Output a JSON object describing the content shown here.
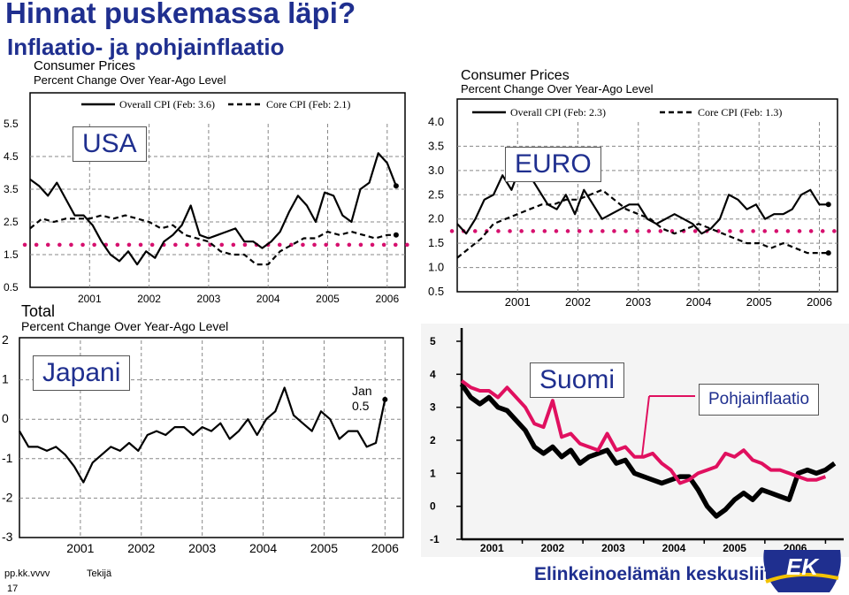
{
  "slide": {
    "title": "Hinnat puskemassa läpi?",
    "subtitle": "Inflaatio- ja pohjainflaatio",
    "footer_date": "pp.kk.vvvv",
    "footer_author": "Tekijä",
    "page_number": "17",
    "brand": "Elinkeinoelämän keskusliitto",
    "logo_text": "EK",
    "pohja_label": "Pohjainflaatio"
  },
  "colors": {
    "title": "#1f2f8f",
    "marker_dots": "#d6106e",
    "suomi_overall": "#000000",
    "suomi_core": "#e0105f"
  },
  "chart_data": [
    {
      "id": "usa",
      "type": "line",
      "country_label": "USA",
      "title": "Consumer Prices",
      "subtitle": "Percent Change Over Year-Ago Level",
      "yticks": [
        "5.5",
        "4.5",
        "3.5",
        "2.5",
        "1.5",
        "0.5"
      ],
      "xticks": [
        "2001",
        "2002",
        "2003",
        "2004",
        "2005",
        "2006"
      ],
      "ylim": [
        0.5,
        5.5
      ],
      "xlim": [
        2000.0,
        2006.3
      ],
      "legend": [
        "Overall CPI (Feb: 3.6)",
        "Core CPI (Feb: 2.1)"
      ],
      "ref_line": 1.8,
      "series": [
        {
          "name": "Overall CPI (Feb: 3.6)",
          "style": "solid",
          "x": [
            2000.0,
            2000.15,
            2000.3,
            2000.45,
            2000.6,
            2000.75,
            2000.9,
            2001.05,
            2001.2,
            2001.35,
            2001.5,
            2001.65,
            2001.8,
            2001.95,
            2002.1,
            2002.25,
            2002.4,
            2002.55,
            2002.7,
            2002.85,
            2003.0,
            2003.15,
            2003.3,
            2003.45,
            2003.6,
            2003.75,
            2003.9,
            2004.05,
            2004.2,
            2004.35,
            2004.5,
            2004.65,
            2004.8,
            2004.95,
            2005.1,
            2005.25,
            2005.4,
            2005.55,
            2005.7,
            2005.85,
            2006.0,
            2006.15
          ],
          "values": [
            3.8,
            3.6,
            3.3,
            3.7,
            3.2,
            2.7,
            2.7,
            2.4,
            1.9,
            1.5,
            1.3,
            1.6,
            1.2,
            1.6,
            1.4,
            1.9,
            2.1,
            2.4,
            3.0,
            2.1,
            2.0,
            2.1,
            2.2,
            2.3,
            1.9,
            1.9,
            1.7,
            1.9,
            2.2,
            2.8,
            3.3,
            3.0,
            2.5,
            3.4,
            3.3,
            2.7,
            2.5,
            3.5,
            3.7,
            4.6,
            4.3,
            3.6
          ]
        },
        {
          "name": "Core CPI (Feb: 2.1)",
          "style": "dashed",
          "x": [
            2000.0,
            2000.2,
            2000.4,
            2000.6,
            2000.8,
            2001.0,
            2001.2,
            2001.4,
            2001.6,
            2001.8,
            2002.0,
            2002.2,
            2002.4,
            2002.6,
            2002.8,
            2003.0,
            2003.2,
            2003.4,
            2003.6,
            2003.8,
            2004.0,
            2004.2,
            2004.4,
            2004.6,
            2004.8,
            2005.0,
            2005.2,
            2005.4,
            2005.6,
            2005.8,
            2006.0,
            2006.15
          ],
          "values": [
            2.3,
            2.6,
            2.5,
            2.6,
            2.6,
            2.6,
            2.7,
            2.6,
            2.7,
            2.6,
            2.5,
            2.3,
            2.4,
            2.1,
            2.0,
            1.9,
            1.6,
            1.5,
            1.5,
            1.2,
            1.2,
            1.6,
            1.8,
            2.0,
            2.0,
            2.2,
            2.1,
            2.2,
            2.1,
            2.0,
            2.1,
            2.1
          ]
        }
      ]
    },
    {
      "id": "euro",
      "type": "line",
      "country_label": "EURO",
      "title": "Consumer Prices",
      "subtitle": "Percent Change Over Year-Ago Level",
      "yticks": [
        "4.0",
        "3.5",
        "3.0",
        "2.5",
        "2.0",
        "1.5",
        "1.0",
        "0.5"
      ],
      "xticks": [
        "2001",
        "2002",
        "2003",
        "2004",
        "2005",
        "2006"
      ],
      "ylim": [
        0.5,
        4.0
      ],
      "xlim": [
        2000.0,
        2006.3
      ],
      "legend": [
        "Overall CPI (Feb: 2.3)",
        "Core CPI (Feb: 1.3)"
      ],
      "ref_line": 1.75,
      "series": [
        {
          "name": "Overall CPI (Feb: 2.3)",
          "style": "solid",
          "x": [
            2000.0,
            2000.15,
            2000.3,
            2000.45,
            2000.6,
            2000.75,
            2000.9,
            2001.05,
            2001.2,
            2001.35,
            2001.5,
            2001.65,
            2001.8,
            2001.95,
            2002.1,
            2002.25,
            2002.4,
            2002.55,
            2002.7,
            2002.85,
            2003.0,
            2003.15,
            2003.3,
            2003.45,
            2003.6,
            2003.75,
            2003.9,
            2004.05,
            2004.2,
            2004.35,
            2004.5,
            2004.65,
            2004.8,
            2004.95,
            2005.1,
            2005.25,
            2005.4,
            2005.55,
            2005.7,
            2005.85,
            2006.0,
            2006.15
          ],
          "values": [
            1.9,
            1.7,
            2.0,
            2.4,
            2.5,
            2.9,
            2.6,
            3.1,
            2.9,
            2.6,
            2.3,
            2.2,
            2.5,
            2.1,
            2.6,
            2.3,
            2.0,
            2.1,
            2.2,
            2.3,
            2.3,
            2.0,
            1.9,
            2.0,
            2.1,
            2.0,
            1.9,
            1.7,
            1.8,
            2.0,
            2.5,
            2.4,
            2.2,
            2.3,
            2.0,
            2.1,
            2.1,
            2.2,
            2.5,
            2.6,
            2.3,
            2.3
          ]
        },
        {
          "name": "Core CPI (Feb: 1.3)",
          "style": "dashed",
          "x": [
            2000.0,
            2000.2,
            2000.4,
            2000.6,
            2000.8,
            2001.0,
            2001.2,
            2001.4,
            2001.6,
            2001.8,
            2002.0,
            2002.2,
            2002.4,
            2002.6,
            2002.8,
            2003.0,
            2003.2,
            2003.4,
            2003.6,
            2003.8,
            2004.0,
            2004.2,
            2004.4,
            2004.6,
            2004.8,
            2005.0,
            2005.2,
            2005.4,
            2005.6,
            2005.8,
            2006.0,
            2006.15
          ],
          "values": [
            1.2,
            1.4,
            1.6,
            1.9,
            2.0,
            2.1,
            2.2,
            2.3,
            2.3,
            2.4,
            2.4,
            2.5,
            2.6,
            2.4,
            2.2,
            2.1,
            2.0,
            1.8,
            1.7,
            1.8,
            1.9,
            1.8,
            1.7,
            1.6,
            1.5,
            1.5,
            1.4,
            1.5,
            1.4,
            1.3,
            1.3,
            1.3
          ]
        }
      ]
    },
    {
      "id": "japan",
      "type": "line",
      "country_label": "Japani",
      "title": "Total",
      "subtitle": "Percent Change Over Year-Ago Level",
      "yticks": [
        "2",
        "1",
        "0",
        "-1",
        "-2",
        "-3"
      ],
      "xticks": [
        "2001",
        "2002",
        "2003",
        "2004",
        "2005",
        "2006"
      ],
      "ylim": [
        -3,
        2
      ],
      "xlim": [
        2000.0,
        2006.3
      ],
      "annotation": [
        "Jan",
        "0.5"
      ],
      "series": [
        {
          "name": "",
          "style": "solid",
          "x": [
            2000.0,
            2000.15,
            2000.3,
            2000.45,
            2000.6,
            2000.75,
            2000.9,
            2001.05,
            2001.2,
            2001.35,
            2001.5,
            2001.65,
            2001.8,
            2001.95,
            2002.1,
            2002.25,
            2002.4,
            2002.55,
            2002.7,
            2002.85,
            2003.0,
            2003.15,
            2003.3,
            2003.45,
            2003.6,
            2003.75,
            2003.9,
            2004.05,
            2004.2,
            2004.35,
            2004.5,
            2004.65,
            2004.8,
            2004.95,
            2005.1,
            2005.25,
            2005.4,
            2005.55,
            2005.7,
            2005.85,
            2006.0
          ],
          "values": [
            -0.3,
            -0.7,
            -0.7,
            -0.8,
            -0.7,
            -0.9,
            -1.2,
            -1.6,
            -1.1,
            -0.9,
            -0.7,
            -0.8,
            -0.6,
            -0.8,
            -0.4,
            -0.3,
            -0.4,
            -0.2,
            -0.2,
            -0.4,
            -0.2,
            -0.3,
            -0.1,
            -0.5,
            -0.3,
            0.0,
            -0.4,
            0.0,
            0.2,
            0.8,
            0.1,
            -0.1,
            -0.3,
            0.2,
            0.0,
            -0.5,
            -0.3,
            -0.3,
            -0.7,
            -0.6,
            0.5
          ]
        }
      ]
    },
    {
      "id": "suomi",
      "type": "line",
      "country_label": "Suomi",
      "yticks": [
        "5",
        "4",
        "3",
        "2",
        "1",
        "0",
        "-1"
      ],
      "xticks": [
        "2001",
        "2002",
        "2003",
        "2004",
        "2005",
        "2006"
      ],
      "ylim": [
        -1,
        5
      ],
      "xlim": [
        2000.0,
        2006.3
      ],
      "series": [
        {
          "name": "",
          "style": "solid-black",
          "x": [
            2000.0,
            2000.15,
            2000.3,
            2000.45,
            2000.6,
            2000.75,
            2000.9,
            2001.05,
            2001.2,
            2001.35,
            2001.5,
            2001.65,
            2001.8,
            2001.95,
            2002.1,
            2002.25,
            2002.4,
            2002.55,
            2002.7,
            2002.85,
            2003.0,
            2003.15,
            2003.3,
            2003.45,
            2003.6,
            2003.75,
            2003.9,
            2004.05,
            2004.2,
            2004.35,
            2004.5,
            2004.65,
            2004.8,
            2004.95,
            2005.1,
            2005.25,
            2005.4,
            2005.55,
            2005.7,
            2005.85,
            2006.0,
            2006.15
          ],
          "values": [
            3.7,
            3.3,
            3.1,
            3.3,
            3.0,
            2.9,
            2.6,
            2.3,
            1.8,
            1.6,
            1.8,
            1.5,
            1.7,
            1.3,
            1.5,
            1.6,
            1.7,
            1.3,
            1.4,
            1.0,
            0.9,
            0.8,
            0.7,
            0.8,
            0.9,
            0.9,
            0.5,
            0.0,
            -0.3,
            -0.1,
            0.2,
            0.4,
            0.2,
            0.5,
            0.4,
            0.3,
            0.2,
            1.0,
            1.1,
            1.0,
            1.1,
            1.3
          ]
        },
        {
          "name": "",
          "style": "solid-pink",
          "x": [
            2000.0,
            2000.15,
            2000.3,
            2000.45,
            2000.6,
            2000.75,
            2000.9,
            2001.05,
            2001.2,
            2001.35,
            2001.5,
            2001.65,
            2001.8,
            2001.95,
            2002.1,
            2002.25,
            2002.4,
            2002.55,
            2002.7,
            2002.85,
            2003.0,
            2003.15,
            2003.3,
            2003.45,
            2003.6,
            2003.75,
            2003.9,
            2004.05,
            2004.2,
            2004.35,
            2004.5,
            2004.65,
            2004.8,
            2004.95,
            2005.1,
            2005.25,
            2005.4,
            2005.55,
            2005.7,
            2005.85,
            2006.0
          ],
          "values": [
            3.8,
            3.6,
            3.5,
            3.5,
            3.3,
            3.6,
            3.3,
            3.0,
            2.5,
            2.4,
            3.2,
            2.1,
            2.2,
            1.9,
            1.8,
            1.7,
            2.2,
            1.7,
            1.8,
            1.5,
            1.5,
            1.6,
            1.3,
            1.1,
            0.7,
            0.8,
            1.0,
            1.1,
            1.2,
            1.6,
            1.5,
            1.7,
            1.4,
            1.3,
            1.1,
            1.1,
            1.0,
            0.9,
            0.8,
            0.8,
            0.9
          ]
        }
      ]
    }
  ]
}
